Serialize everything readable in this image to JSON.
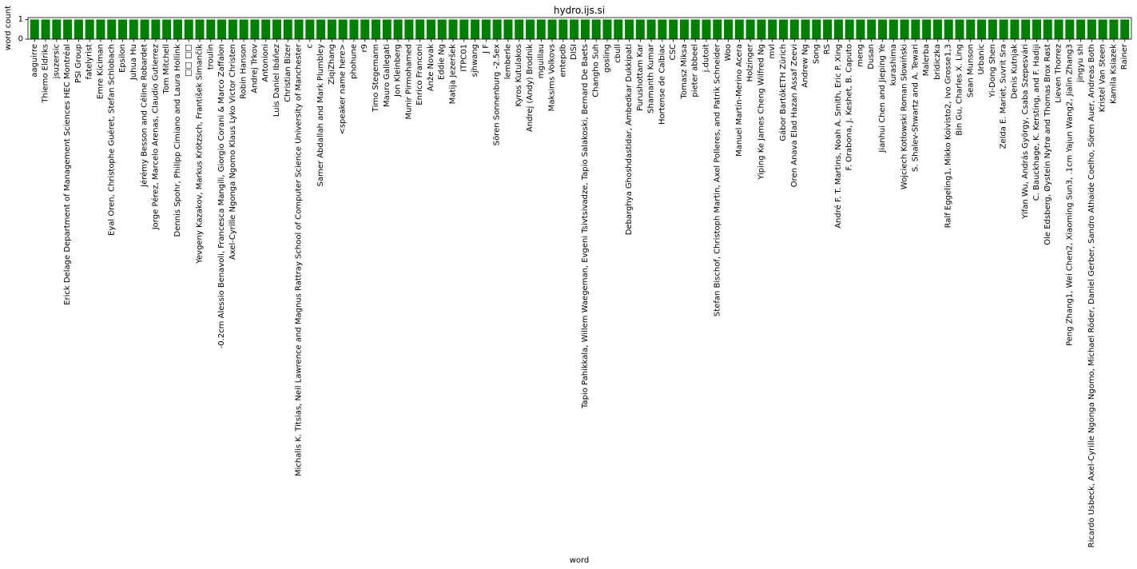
{
  "chart_data": {
    "type": "bar",
    "title": "hydro.ijs.si",
    "xlabel": "word",
    "ylabel": "word count",
    "ylim": [
      0,
      1.1
    ],
    "yticks": [
      0,
      1
    ],
    "grid": false,
    "bar_color": "#008000",
    "categories": [
      "aaguirre",
      "Thiemo Eldriks",
      "jsuzersic",
      "Erick Delage Department of Management Sciences  HEC Montréal",
      "PSI Group",
      "fatelyrist",
      "Emre Kiciman",
      "Eyal Oren, Christophe Guéret, Stefan Schlobach",
      "Epsilon",
      "Juhua Hu",
      "Jérémy Besson and Céline Robardet",
      "Jorge Pérez, Marcelo Arenas, Claudio Gutierrez",
      "Tom Mitchell",
      "Dennis Spohr, Philipp Cimiano and Laura Hollink",
      "□□ □□",
      "Yevgeny Kazakov, Markus Krötzsch, František Simančík",
      "troulin",
      "-0.2cm Alessio Benavoli, Francesca Mangili, Giorgio Corani & Marco Zaffalon",
      "Axel-Cyrille Ngonga Ngomo  Klaus Lyko  Victor Christen",
      "Robin Hanson",
      "Andrej Trkov",
      "Antonioni",
      "Luis Daniel Ibáñez",
      "Christian Bizer",
      "Michalis K. Titsias, Neil Lawrence and Magnus Rattray School of Computer Science University of Manchester",
      "c",
      "Samer Abdallah and Mark Plumbley",
      "ZiqiZhang",
      "<speaker name here>",
      "phohune",
      "r9",
      "Timo Stegemann",
      "Mauro Gallegati",
      "Jon Kleinberg",
      "Munir Pirmohamed",
      "Enrico Franconi",
      "Anže Novak",
      "Eddie Ng",
      "Matija Jezeršek",
      "ITPC01",
      "sjhwang",
      "J F",
      "Sören Sonnenburg -2.5ex",
      "lemberle",
      "Kyros Kutulakos",
      "Andrej (Andy) Brodnik",
      "mguillau",
      "Maksims Volkovs",
      "entepdb",
      "DISI",
      "Tapio Pahikkala, Willem Waegeman, Evgeni Tsivtsivadze, Tapio Salakoski, Bernard De Baets",
      "Changho Suh",
      "gosling",
      "cbull",
      "Debarghya Ghoshdastidar, Ambedkar Dukkipati",
      "Purushottam Kar",
      "Shamanth Kumar",
      "Hortense de Calbiac",
      "CSC",
      "Tomasz Miksa",
      "pieter abbeel",
      "j.dutoit",
      "Stefan Bischof, Christoph Martin, Axel Polleres, and Patrik Schneider",
      "Woo",
      "Manuel Martín-Merino Acera",
      "Holzinger",
      "Yiping Ke    James Cheng    Wilfred Ng",
      "mvl",
      "Gábor BartókETH Zürich",
      "Oren Anava    Elad Hazan    Assaf Zeevi",
      "Andrew Ng",
      "Song",
      "RS",
      "André F. T. Martins, Noah A. Smith, Eric P. Xing",
      "F. Orabona, J. Keshet, B. Caputo",
      "meng",
      "Dusan",
      "Jianhui Chen and Jieping Ye",
      "kurashima",
      "Wojciech Kotłowski  Roman Słowiński",
      "S. Shalev-Shwartz and A. Tewari",
      "Malerba",
      "bridiczka",
      "Ralf Eggeling1, Mikko Koivisto2, Ivo Grosse1,3",
      "Bin Gu, Charles X. Ling",
      "Sean Munson",
      "Urbanic",
      "Yi-Dong Shen",
      "Zelda E. Mariet, Suvrit Sra",
      "Denis Kutnjak",
      "Yifan Wu, András György, Csaba Szepesvári",
      "C. Bauckhage, K. Kersting, and F. Hadiji",
      "Ole Edsberg, Øystein Nytrø and Thomas Brox Røst",
      "Lieven Thorrez",
      "Peng Zhang1, Wei Chen2, Xiaoming Sun3, .1cm Yajun Wang2, Jialin Zhang3",
      "jingyu shi",
      "Ricardo Usbeck, Axel-Cyrille Ngonga Ngomo, Michael Röder, Daniel Gerber, Sandro Athaide Coelho, Sören Auer, Andreas Both",
      "Kristel Van Steen",
      "Kamila Ksiazek",
      "Rainer"
    ],
    "values": [
      1,
      1,
      1,
      1,
      1,
      1,
      1,
      1,
      1,
      1,
      1,
      1,
      1,
      1,
      1,
      1,
      1,
      1,
      1,
      1,
      1,
      1,
      1,
      1,
      1,
      1,
      1,
      1,
      1,
      1,
      1,
      1,
      1,
      1,
      1,
      1,
      1,
      1,
      1,
      1,
      1,
      1,
      1,
      1,
      1,
      1,
      1,
      1,
      1,
      1,
      1,
      1,
      1,
      1,
      1,
      1,
      1,
      1,
      1,
      1,
      1,
      1,
      1,
      1,
      1,
      1,
      1,
      1,
      1,
      1,
      1,
      1,
      1,
      1,
      1,
      1,
      1,
      1,
      1,
      1,
      1,
      1,
      1,
      1,
      1,
      1,
      1,
      1,
      1,
      1,
      1,
      1,
      1,
      1,
      1,
      1,
      1,
      1,
      1,
      1
    ]
  }
}
